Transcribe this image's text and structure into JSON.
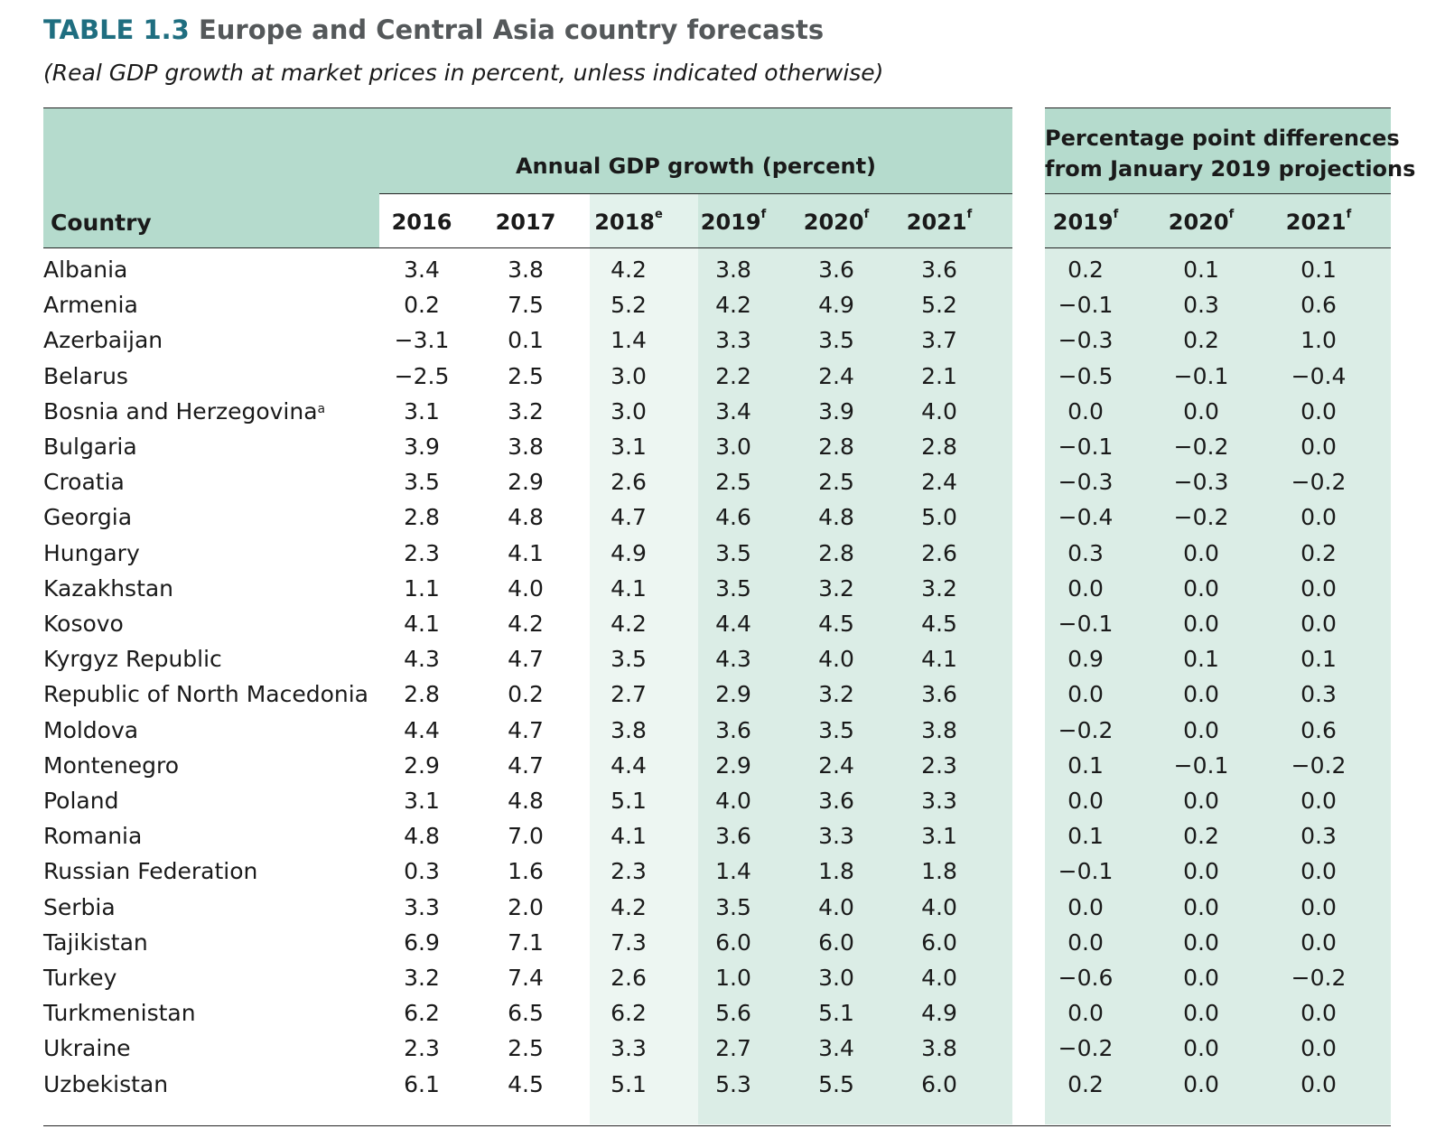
{
  "title": {
    "prefix": "TABLE 1.3",
    "text": "Europe and Central Asia country forecasts"
  },
  "subtitle": "(Real GDP growth at market prices in percent, unless indicated otherwise)",
  "header": {
    "country": "Country",
    "group_growth": "Annual GDP growth (percent)",
    "group_diff_line1": "Percentage point differences",
    "group_diff_line2": "from January 2019 projections",
    "years_growth": [
      {
        "year": "2016",
        "note": ""
      },
      {
        "year": "2017",
        "note": ""
      },
      {
        "year": "2018",
        "note": "e"
      },
      {
        "year": "2019",
        "note": "f"
      },
      {
        "year": "2020",
        "note": "f"
      },
      {
        "year": "2021",
        "note": "f"
      }
    ],
    "years_diff": [
      {
        "year": "2019",
        "note": "f"
      },
      {
        "year": "2020",
        "note": "f"
      },
      {
        "year": "2021",
        "note": "f"
      }
    ]
  },
  "rows": [
    {
      "country": "Albania",
      "note": "",
      "growth": [
        "3.4",
        "3.8",
        "4.2",
        "3.8",
        "3.6",
        "3.6"
      ],
      "diff": [
        "0.2",
        "0.1",
        "0.1"
      ]
    },
    {
      "country": "Armenia",
      "note": "",
      "growth": [
        "0.2",
        "7.5",
        "5.2",
        "4.2",
        "4.9",
        "5.2"
      ],
      "diff": [
        "−0.1",
        "0.3",
        "0.6"
      ]
    },
    {
      "country": "Azerbaijan",
      "note": "",
      "growth": [
        "−3.1",
        "0.1",
        "1.4",
        "3.3",
        "3.5",
        "3.7"
      ],
      "diff": [
        "−0.3",
        "0.2",
        "1.0"
      ]
    },
    {
      "country": "Belarus",
      "note": "",
      "growth": [
        "−2.5",
        "2.5",
        "3.0",
        "2.2",
        "2.4",
        "2.1"
      ],
      "diff": [
        "−0.5",
        "−0.1",
        "−0.4"
      ]
    },
    {
      "country": "Bosnia and Herzegovina",
      "note": "a",
      "growth": [
        "3.1",
        "3.2",
        "3.0",
        "3.4",
        "3.9",
        "4.0"
      ],
      "diff": [
        "0.0",
        "0.0",
        "0.0"
      ]
    },
    {
      "country": "Bulgaria",
      "note": "",
      "growth": [
        "3.9",
        "3.8",
        "3.1",
        "3.0",
        "2.8",
        "2.8"
      ],
      "diff": [
        "−0.1",
        "−0.2",
        "0.0"
      ]
    },
    {
      "country": "Croatia",
      "note": "",
      "growth": [
        "3.5",
        "2.9",
        "2.6",
        "2.5",
        "2.5",
        "2.4"
      ],
      "diff": [
        "−0.3",
        "−0.3",
        "−0.2"
      ]
    },
    {
      "country": "Georgia",
      "note": "",
      "growth": [
        "2.8",
        "4.8",
        "4.7",
        "4.6",
        "4.8",
        "5.0"
      ],
      "diff": [
        "−0.4",
        "−0.2",
        "0.0"
      ]
    },
    {
      "country": "Hungary",
      "note": "",
      "growth": [
        "2.3",
        "4.1",
        "4.9",
        "3.5",
        "2.8",
        "2.6"
      ],
      "diff": [
        "0.3",
        "0.0",
        "0.2"
      ]
    },
    {
      "country": "Kazakhstan",
      "note": "",
      "growth": [
        "1.1",
        "4.0",
        "4.1",
        "3.5",
        "3.2",
        "3.2"
      ],
      "diff": [
        "0.0",
        "0.0",
        "0.0"
      ]
    },
    {
      "country": "Kosovo",
      "note": "",
      "growth": [
        "4.1",
        "4.2",
        "4.2",
        "4.4",
        "4.5",
        "4.5"
      ],
      "diff": [
        "−0.1",
        "0.0",
        "0.0"
      ]
    },
    {
      "country": "Kyrgyz Republic",
      "note": "",
      "growth": [
        "4.3",
        "4.7",
        "3.5",
        "4.3",
        "4.0",
        "4.1"
      ],
      "diff": [
        "0.9",
        "0.1",
        "0.1"
      ]
    },
    {
      "country": "Republic of North Macedonia",
      "note": "",
      "growth": [
        "2.8",
        "0.2",
        "2.7",
        "2.9",
        "3.2",
        "3.6"
      ],
      "diff": [
        "0.0",
        "0.0",
        "0.3"
      ]
    },
    {
      "country": "Moldova",
      "note": "",
      "growth": [
        "4.4",
        "4.7",
        "3.8",
        "3.6",
        "3.5",
        "3.8"
      ],
      "diff": [
        "−0.2",
        "0.0",
        "0.6"
      ]
    },
    {
      "country": "Montenegro",
      "note": "",
      "growth": [
        "2.9",
        "4.7",
        "4.4",
        "2.9",
        "2.4",
        "2.3"
      ],
      "diff": [
        "0.1",
        "−0.1",
        "−0.2"
      ]
    },
    {
      "country": "Poland",
      "note": "",
      "growth": [
        "3.1",
        "4.8",
        "5.1",
        "4.0",
        "3.6",
        "3.3"
      ],
      "diff": [
        "0.0",
        "0.0",
        "0.0"
      ]
    },
    {
      "country": "Romania",
      "note": "",
      "growth": [
        "4.8",
        "7.0",
        "4.1",
        "3.6",
        "3.3",
        "3.1"
      ],
      "diff": [
        "0.1",
        "0.2",
        "0.3"
      ]
    },
    {
      "country": "Russian Federation",
      "note": "",
      "growth": [
        "0.3",
        "1.6",
        "2.3",
        "1.4",
        "1.8",
        "1.8"
      ],
      "diff": [
        "−0.1",
        "0.0",
        "0.0"
      ]
    },
    {
      "country": "Serbia",
      "note": "",
      "growth": [
        "3.3",
        "2.0",
        "4.2",
        "3.5",
        "4.0",
        "4.0"
      ],
      "diff": [
        "0.0",
        "0.0",
        "0.0"
      ]
    },
    {
      "country": "Tajikistan",
      "note": "",
      "growth": [
        "6.9",
        "7.1",
        "7.3",
        "6.0",
        "6.0",
        "6.0"
      ],
      "diff": [
        "0.0",
        "0.0",
        "0.0"
      ]
    },
    {
      "country": "Turkey",
      "note": "",
      "growth": [
        "3.2",
        "7.4",
        "2.6",
        "1.0",
        "3.0",
        "4.0"
      ],
      "diff": [
        "−0.6",
        "0.0",
        "−0.2"
      ]
    },
    {
      "country": "Turkmenistan",
      "note": "",
      "growth": [
        "6.2",
        "6.5",
        "6.2",
        "5.6",
        "5.1",
        "4.9"
      ],
      "diff": [
        "0.0",
        "0.0",
        "0.0"
      ]
    },
    {
      "country": "Ukraine",
      "note": "",
      "growth": [
        "2.3",
        "2.5",
        "3.3",
        "2.7",
        "3.4",
        "3.8"
      ],
      "diff": [
        "−0.2",
        "0.0",
        "0.0"
      ]
    },
    {
      "country": "Uzbekistan",
      "note": "",
      "growth": [
        "6.1",
        "4.5",
        "5.1",
        "5.3",
        "5.5",
        "6.0"
      ],
      "diff": [
        "0.2",
        "0.0",
        "0.0"
      ]
    }
  ],
  "colors": {
    "header_fill": "#b5dbcd",
    "shade_light": "#edf6f2",
    "shade_mid": "#dbede6",
    "title_accent": "#1f6e80",
    "title_grey": "#54585a"
  }
}
